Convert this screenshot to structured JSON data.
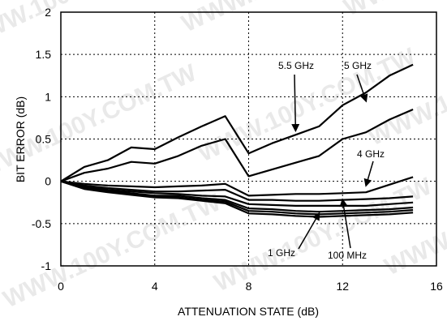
{
  "chart_data": {
    "type": "line",
    "title": "",
    "xlabel": "ATTENUATION STATE (dB)",
    "ylabel": "BIT ERROR (dB)",
    "xlim": [
      0,
      16
    ],
    "ylim": [
      -1,
      2
    ],
    "xticks": [
      0,
      4,
      8,
      12,
      16
    ],
    "yticks": [
      -1,
      -0.5,
      0,
      0.5,
      1,
      1.5,
      2
    ],
    "xtick_labels": [
      "0",
      "4",
      "8",
      "12",
      "16"
    ],
    "ytick_labels": [
      "-1",
      "-0.5",
      "0",
      "0.5",
      "1",
      "1.5",
      "2"
    ],
    "grid": true,
    "watermark": "WWW.100Y.COM.TW",
    "series": [
      {
        "x": [
          0,
          1,
          2,
          3,
          4,
          5,
          6,
          7,
          8,
          9,
          10,
          11,
          12,
          13,
          14,
          15
        ],
        "values": [
          0,
          0.17,
          0.25,
          0.4,
          0.38,
          0.52,
          0.65,
          0.77,
          0.33,
          0.45,
          0.55,
          0.65,
          0.9,
          1.05,
          1.25,
          1.38
        ]
      },
      {
        "x": [
          0,
          1,
          2,
          3,
          4,
          5,
          6,
          7,
          8,
          9,
          10,
          11,
          12,
          13,
          14,
          15
        ],
        "values": [
          0,
          0.1,
          0.15,
          0.23,
          0.21,
          0.3,
          0.42,
          0.5,
          0.06,
          0.14,
          0.22,
          0.3,
          0.5,
          0.58,
          0.73,
          0.85
        ]
      },
      {
        "x": [
          0,
          1,
          2,
          3,
          4,
          5,
          6,
          7,
          8,
          9,
          10,
          11,
          12,
          13,
          14,
          15
        ],
        "values": [
          0,
          -0.03,
          -0.05,
          -0.06,
          -0.07,
          -0.06,
          -0.05,
          -0.03,
          -0.17,
          -0.16,
          -0.15,
          -0.15,
          -0.14,
          -0.13,
          -0.04,
          0.05
        ]
      },
      {
        "x": [
          0,
          1,
          2,
          3,
          4,
          5,
          6,
          7,
          8,
          9,
          10,
          11,
          12,
          13,
          14,
          15
        ],
        "values": [
          0,
          -0.05,
          -0.08,
          -0.1,
          -0.12,
          -0.12,
          -0.11,
          -0.1,
          -0.22,
          -0.22,
          -0.23,
          -0.23,
          -0.22,
          -0.21,
          -0.2,
          -0.18
        ]
      },
      {
        "x": [
          0,
          1,
          2,
          3,
          4,
          5,
          6,
          7,
          8,
          9,
          10,
          11,
          12,
          13,
          14,
          15
        ],
        "values": [
          0,
          -0.06,
          -0.1,
          -0.12,
          -0.14,
          -0.15,
          -0.17,
          -0.18,
          -0.27,
          -0.28,
          -0.29,
          -0.29,
          -0.29,
          -0.29,
          -0.27,
          -0.25
        ]
      },
      {
        "x": [
          0,
          1,
          2,
          3,
          4,
          5,
          6,
          7,
          8,
          9,
          10,
          11,
          12,
          13,
          14,
          15
        ],
        "values": [
          0,
          -0.07,
          -0.11,
          -0.14,
          -0.17,
          -0.17,
          -0.2,
          -0.22,
          -0.32,
          -0.33,
          -0.35,
          -0.36,
          -0.35,
          -0.34,
          -0.33,
          -0.31
        ]
      },
      {
        "x": [
          0,
          1,
          2,
          3,
          4,
          5,
          6,
          7,
          8,
          9,
          10,
          11,
          12,
          13,
          14,
          15
        ],
        "values": [
          0,
          -0.08,
          -0.12,
          -0.15,
          -0.18,
          -0.19,
          -0.22,
          -0.24,
          -0.35,
          -0.36,
          -0.38,
          -0.39,
          -0.38,
          -0.37,
          -0.36,
          -0.34
        ]
      },
      {
        "x": [
          0,
          1,
          2,
          3,
          4,
          5,
          6,
          7,
          8,
          9,
          10,
          11,
          12,
          13,
          14,
          15
        ],
        "values": [
          0,
          -0.09,
          -0.13,
          -0.16,
          -0.19,
          -0.2,
          -0.23,
          -0.26,
          -0.38,
          -0.39,
          -0.41,
          -0.42,
          -0.41,
          -0.4,
          -0.39,
          -0.37
        ]
      }
    ],
    "annotations": [
      {
        "text": "5.5 GHz",
        "arrow_to": [
          10,
          0.6
        ]
      },
      {
        "text": "5 GHz",
        "arrow_to": [
          13,
          0.95
        ]
      },
      {
        "text": "4 GHz",
        "arrow_to": [
          13,
          -0.05
        ]
      },
      {
        "text": "1 GHz",
        "arrow_to": [
          11,
          -0.38
        ]
      },
      {
        "text": "100 MHz",
        "arrow_to": [
          12,
          -0.22
        ]
      }
    ]
  }
}
